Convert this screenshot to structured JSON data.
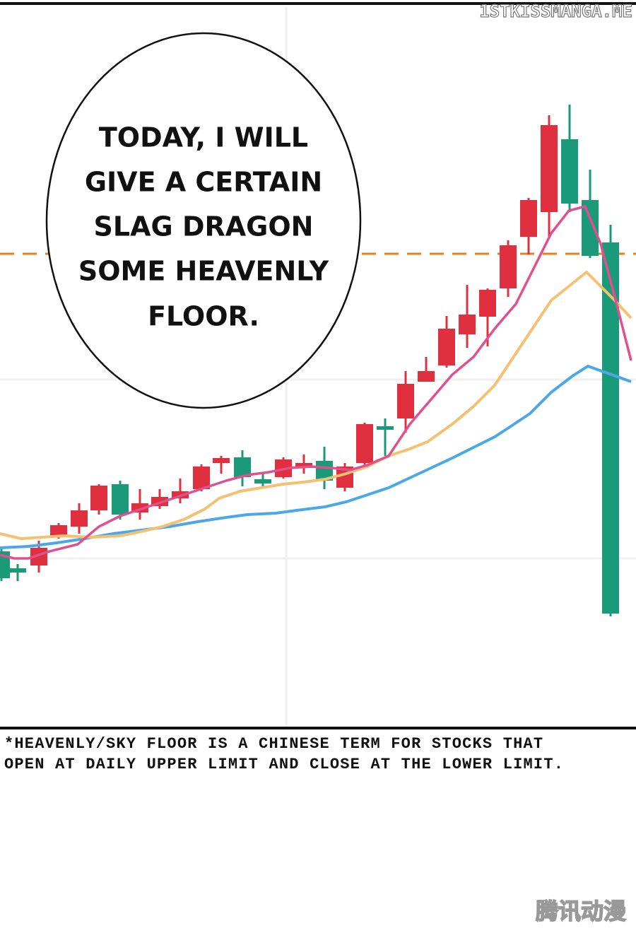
{
  "watermark": "1STKISSMANGA.ME",
  "speech_bubble": {
    "lines": [
      "TODAY, I WILL",
      "GIVE A CERTAIN",
      "SLAG DRAGON",
      "SOME HEAVENLY",
      "FLOOR."
    ]
  },
  "footnote": {
    "lines": [
      "*HEAVENLY/SKY FLOOR IS A CHINESE TERM FOR STOCKS THAT",
      "OPEN AT DAILY UPPER LIMIT AND CLOSE AT THE LOWER LIMIT."
    ]
  },
  "logo": "腾讯动漫"
}
